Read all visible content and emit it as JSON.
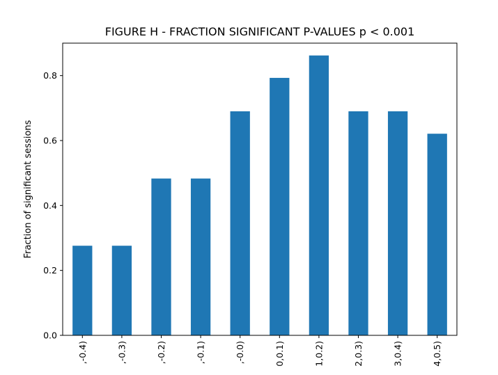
{
  "chart_data": {
    "type": "bar",
    "title": "FIGURE H - FRACTION SIGNIFICANT P-VALUES p < 0.001",
    "xlabel": "",
    "ylabel": "Fraction of significant sessions",
    "categories": [
      ",-0.4)",
      ",-0.3)",
      ",-0.2)",
      ",-0.1)",
      ",-0.0)",
      "0,0.1)",
      "1,0.2)",
      "2,0.3)",
      "3,0.4)",
      "4,0.5)"
    ],
    "values": [
      0.276,
      0.276,
      0.483,
      0.483,
      0.69,
      0.793,
      0.862,
      0.69,
      0.69,
      0.621
    ],
    "ylim": [
      0,
      0.9
    ],
    "yticks": [
      0.0,
      0.2,
      0.4,
      0.6,
      0.8
    ],
    "ytick_labels": [
      "0.0",
      "0.2",
      "0.4",
      "0.6",
      "0.8"
    ],
    "grid": false,
    "legend": "none",
    "bar_color": "#1f77b4"
  }
}
